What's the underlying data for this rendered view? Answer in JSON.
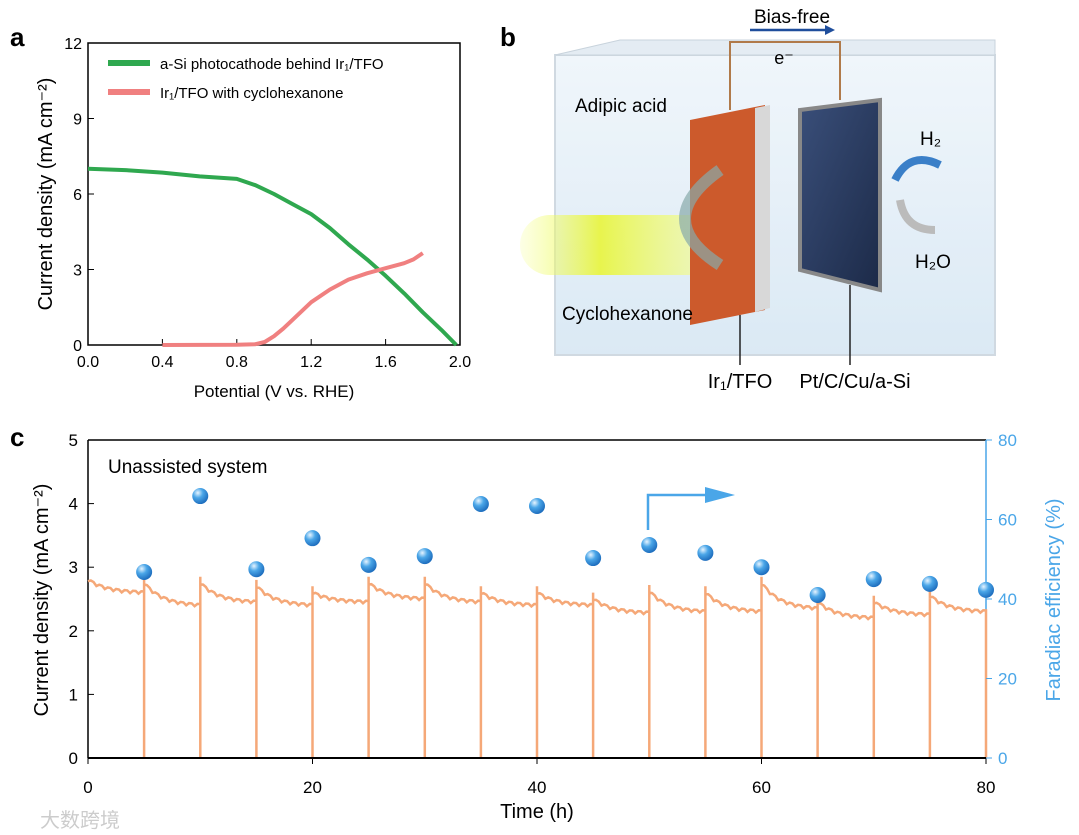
{
  "panel_labels": {
    "a": "a",
    "b": "b",
    "c": "c"
  },
  "colors": {
    "green": "#2fa84f",
    "pink": "#f08080",
    "orange": "#f5a878",
    "blue": "#4aa6e8",
    "arrow_blue": "#1f4e9c"
  },
  "chart_data": [
    {
      "type": "line",
      "panel": "a",
      "xlabel": "Potential (V vs. RHE)",
      "ylabel": "Current density (mA cm⁻²)",
      "xlim": [
        0,
        2.0
      ],
      "ylim": [
        0,
        12
      ],
      "xticks": [
        "0.0",
        "0.4",
        "0.8",
        "1.2",
        "1.6",
        "2.0"
      ],
      "yticks": [
        "0",
        "3",
        "6",
        "9",
        "12"
      ],
      "legend_position": "top-left",
      "series": [
        {
          "name": "a-Si photocathode behind Ir₁/TFO",
          "color": "#2fa84f",
          "x": [
            0,
            0.2,
            0.4,
            0.6,
            0.8,
            0.9,
            1.0,
            1.1,
            1.2,
            1.3,
            1.4,
            1.5,
            1.6,
            1.7,
            1.8,
            1.9,
            1.98
          ],
          "y": [
            7.0,
            6.95,
            6.85,
            6.7,
            6.6,
            6.35,
            6.0,
            5.6,
            5.2,
            4.65,
            4.0,
            3.4,
            2.75,
            2.05,
            1.3,
            0.6,
            0
          ]
        },
        {
          "name": "Ir₁/TFO with cyclohexanone",
          "color": "#f08080",
          "x": [
            0.4,
            0.8,
            0.9,
            0.95,
            1.0,
            1.05,
            1.1,
            1.2,
            1.3,
            1.4,
            1.5,
            1.6,
            1.7,
            1.75,
            1.8
          ],
          "y": [
            0,
            0.01,
            0.03,
            0.12,
            0.35,
            0.65,
            1.0,
            1.7,
            2.2,
            2.6,
            2.85,
            3.05,
            3.25,
            3.4,
            3.65
          ]
        }
      ]
    },
    {
      "type": "line+scatter",
      "panel": "c",
      "annotation": "Unassisted system",
      "xlabel": "Time (h)",
      "ylabel": "Current density (mA cm⁻²)",
      "y2label": "Faradiac efficiency (%)",
      "xlim": [
        0,
        80
      ],
      "ylim": [
        0,
        5
      ],
      "y2lim": [
        0,
        80
      ],
      "xticks": [
        "0",
        "20",
        "40",
        "60",
        "80"
      ],
      "yticks": [
        "0",
        "1",
        "2",
        "3",
        "4",
        "5"
      ],
      "y2ticks": [
        "0",
        "20",
        "40",
        "60",
        "80"
      ],
      "current_segments": [
        {
          "t0": 0,
          "t1": 5,
          "start": 2.8,
          "end": 2.6
        },
        {
          "t0": 5,
          "t1": 10,
          "start": 2.75,
          "end": 2.4
        },
        {
          "t0": 10,
          "t1": 15,
          "start": 2.75,
          "end": 2.45
        },
        {
          "t0": 15,
          "t1": 20,
          "start": 2.7,
          "end": 2.4
        },
        {
          "t0": 20,
          "t1": 25,
          "start": 2.6,
          "end": 2.45
        },
        {
          "t0": 25,
          "t1": 30,
          "start": 2.75,
          "end": 2.5
        },
        {
          "t0": 30,
          "t1": 35,
          "start": 2.75,
          "end": 2.45
        },
        {
          "t0": 35,
          "t1": 40,
          "start": 2.6,
          "end": 2.4
        },
        {
          "t0": 40,
          "t1": 45,
          "start": 2.6,
          "end": 2.4
        },
        {
          "t0": 45,
          "t1": 50,
          "start": 2.5,
          "end": 2.28
        },
        {
          "t0": 50,
          "t1": 55,
          "start": 2.62,
          "end": 2.3
        },
        {
          "t0": 55,
          "t1": 60,
          "start": 2.6,
          "end": 2.3
        },
        {
          "t0": 60,
          "t1": 65,
          "start": 2.75,
          "end": 2.35
        },
        {
          "t0": 65,
          "t1": 70,
          "start": 2.45,
          "end": 2.2
        },
        {
          "t0": 70,
          "t1": 75,
          "start": 2.45,
          "end": 2.25
        },
        {
          "t0": 75,
          "t1": 80,
          "start": 2.55,
          "end": 2.3
        }
      ],
      "faradaic_efficiency": {
        "x": [
          5,
          10,
          15,
          20,
          25,
          30,
          35,
          40,
          45,
          50,
          55,
          60,
          65,
          70,
          75,
          80
        ],
        "y": [
          46.8,
          65.9,
          47.5,
          55.3,
          48.6,
          50.8,
          63.9,
          63.4,
          50.3,
          53.6,
          51.6,
          48.0,
          41.0,
          45.0,
          43.8,
          42.3
        ]
      }
    }
  ],
  "schematic": {
    "bias_free": "Bias-free",
    "electron": "e⁻",
    "adipic_acid": "Adipic acid",
    "cyclohexanone": "Cyclohexanone",
    "h2": "H₂",
    "h2o": "H₂O",
    "anode_label": "Ir₁/TFO",
    "cathode_label": "Pt/C/Cu/a-Si"
  },
  "watermark": "大数跨境"
}
